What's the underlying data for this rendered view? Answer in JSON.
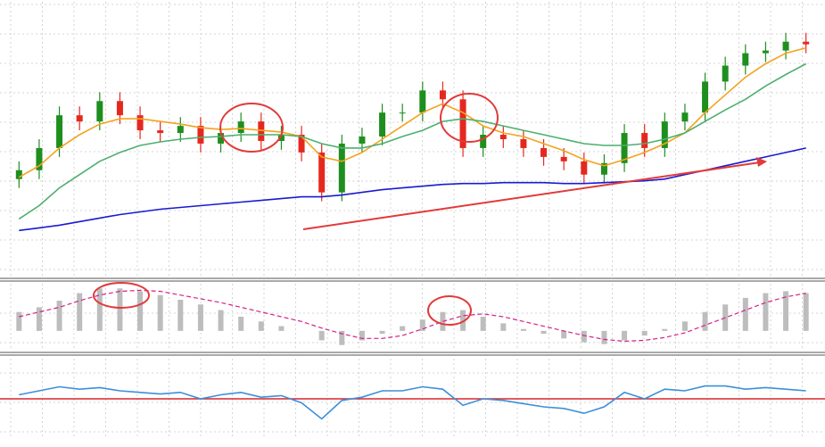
{
  "chart_data": [
    {
      "type": "candlestick",
      "ylim": [
        0,
        310
      ],
      "grid": true,
      "up_color": "#1e8f1e",
      "down_color": "#e5281f",
      "open": [
        110,
        120,
        145,
        182,
        175,
        198,
        182,
        165,
        162,
        170,
        150,
        162,
        175,
        153,
        160,
        140,
        95,
        150,
        158,
        185,
        185,
        210,
        200,
        145,
        160,
        155,
        145,
        135,
        130,
        115,
        128,
        162,
        145,
        175,
        185,
        220,
        238,
        252,
        255,
        265
      ],
      "high": [
        130,
        155,
        192,
        192,
        208,
        208,
        192,
        175,
        180,
        180,
        172,
        185,
        185,
        170,
        170,
        150,
        160,
        168,
        195,
        195,
        220,
        220,
        210,
        170,
        170,
        165,
        155,
        145,
        140,
        138,
        172,
        172,
        185,
        195,
        230,
        248,
        262,
        265,
        275,
        275
      ],
      "low": [
        100,
        110,
        135,
        165,
        165,
        172,
        155,
        152,
        152,
        140,
        140,
        152,
        143,
        143,
        130,
        85,
        85,
        140,
        148,
        175,
        175,
        190,
        135,
        135,
        145,
        135,
        125,
        120,
        105,
        105,
        118,
        135,
        135,
        165,
        175,
        210,
        228,
        242,
        245,
        252
      ],
      "close": [
        120,
        145,
        182,
        175,
        198,
        182,
        165,
        162,
        170,
        150,
        162,
        175,
        153,
        160,
        140,
        95,
        150,
        158,
        185,
        185,
        210,
        200,
        145,
        160,
        155,
        145,
        135,
        130,
        115,
        128,
        162,
        145,
        175,
        185,
        220,
        238,
        252,
        255,
        265,
        262
      ],
      "series": [
        {
          "color": "#f4a21c",
          "values": [
            112,
            125,
            145,
            160,
            172,
            178,
            178,
            175,
            172,
            168,
            166,
            167,
            165,
            163,
            158,
            135,
            130,
            140,
            155,
            170,
            185,
            195,
            185,
            170,
            162,
            158,
            150,
            142,
            132,
            125,
            132,
            140,
            150,
            162,
            185,
            205,
            225,
            240,
            252,
            258
          ]
        },
        {
          "color": "#4caf6e",
          "values": [
            65,
            80,
            100,
            115,
            130,
            140,
            148,
            152,
            155,
            157,
            158,
            160,
            160,
            160,
            158,
            150,
            145,
            145,
            150,
            158,
            165,
            175,
            178,
            175,
            170,
            165,
            160,
            155,
            150,
            148,
            148,
            150,
            155,
            162,
            175,
            188,
            200,
            215,
            228,
            240
          ]
        },
        {
          "color": "#1a1ad0",
          "values": [
            52,
            55,
            58,
            62,
            66,
            70,
            73,
            76,
            78,
            80,
            82,
            84,
            86,
            88,
            90,
            90,
            92,
            95,
            98,
            100,
            102,
            104,
            105,
            105,
            106,
            106,
            106,
            105,
            105,
            106,
            107,
            108,
            110,
            115,
            120,
            125,
            130,
            135,
            140,
            145
          ]
        }
      ]
    },
    {
      "type": "bar",
      "ylim": [
        -20,
        50
      ],
      "grid": true,
      "color": "#bdbdbd",
      "values": [
        20,
        25,
        32,
        40,
        45,
        45,
        42,
        38,
        33,
        28,
        22,
        15,
        10,
        5,
        0,
        -10,
        -15,
        -10,
        -3,
        5,
        12,
        20,
        22,
        15,
        8,
        2,
        -3,
        -8,
        -12,
        -14,
        -10,
        -5,
        2,
        10,
        20,
        28,
        35,
        40,
        42,
        40
      ],
      "series": [
        {
          "color": "#d6208a",
          "values": [
            15,
            20,
            25,
            32,
            38,
            42,
            43,
            42,
            38,
            34,
            30,
            25,
            20,
            15,
            10,
            3,
            -3,
            -8,
            -8,
            -5,
            2,
            10,
            16,
            18,
            15,
            10,
            5,
            0,
            -5,
            -9,
            -11,
            -10,
            -7,
            -2,
            6,
            14,
            22,
            30,
            36,
            40
          ]
        }
      ]
    },
    {
      "type": "line",
      "ylim": [
        0,
        100
      ],
      "grid": true,
      "level": 50,
      "level_color": "#d9262b",
      "series": [
        {
          "color": "#3d8fd9",
          "values": [
            55,
            60,
            65,
            62,
            64,
            60,
            58,
            56,
            58,
            50,
            55,
            58,
            52,
            54,
            45,
            25,
            48,
            52,
            60,
            60,
            65,
            62,
            42,
            50,
            48,
            44,
            40,
            38,
            32,
            40,
            58,
            50,
            62,
            60,
            66,
            66,
            62,
            64,
            62,
            60
          ]
        }
      ]
    }
  ]
}
